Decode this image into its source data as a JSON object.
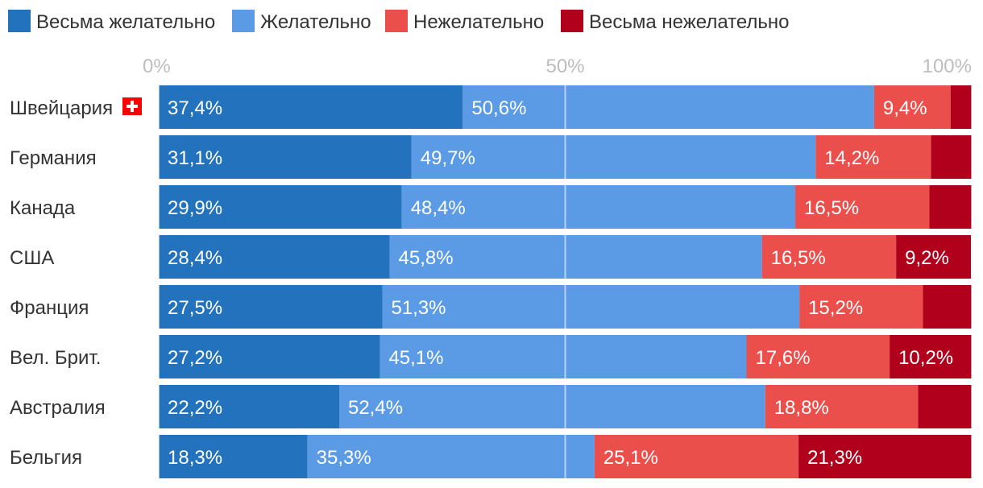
{
  "chart_data": {
    "type": "bar",
    "orientation": "horizontal",
    "stacked": true,
    "title": "",
    "xlabel": "",
    "ylabel": "",
    "xlim": [
      0,
      100
    ],
    "ticks": [
      "0%",
      "50%",
      "100%"
    ],
    "tick_values": [
      0,
      50,
      100
    ],
    "legend_position": "top",
    "grid": true,
    "categories": [
      "Швейцария",
      "Германия",
      "Канада",
      "США",
      "Франция",
      "Вел. Брит.",
      "Австралия",
      "Бельгия"
    ],
    "series": [
      {
        "name": "Весьма желательно",
        "color": "#2372bd",
        "values": [
          37.4,
          31.1,
          29.9,
          28.4,
          27.5,
          27.2,
          22.2,
          18.3
        ],
        "labels": [
          "37,4%",
          "31,1%",
          "29,9%",
          "28,4%",
          "27,5%",
          "27,2%",
          "22,2%",
          "18,3%"
        ]
      },
      {
        "name": "Желательно",
        "color": "#5b9be6",
        "values": [
          50.6,
          49.7,
          48.4,
          45.8,
          51.3,
          45.1,
          52.4,
          35.3
        ],
        "labels": [
          "50,6%",
          "49,7%",
          "48,4%",
          "45,8%",
          "51,3%",
          "45,1%",
          "52,4%",
          "35,3%"
        ]
      },
      {
        "name": "Нежелательно",
        "color": "#ea4f4c",
        "values": [
          9.4,
          14.2,
          16.5,
          16.5,
          15.2,
          17.6,
          18.8,
          25.1
        ],
        "labels": [
          "9,4%",
          "14,2%",
          "16,5%",
          "16,5%",
          "15,2%",
          "17,6%",
          "18,8%",
          "25,1%"
        ]
      },
      {
        "name": "Весьма нежелательно",
        "color": "#b1001c",
        "values": [
          2.6,
          5.0,
          5.2,
          9.2,
          6.0,
          10.2,
          6.6,
          21.3
        ],
        "labels": [
          "",
          "",
          "",
          "9,2%",
          "",
          "10,2%",
          "",
          "21,3%"
        ]
      }
    ],
    "flag": {
      "country": "Швейцария",
      "icon": "swiss-flag-icon",
      "color": "#ff0000"
    }
  }
}
